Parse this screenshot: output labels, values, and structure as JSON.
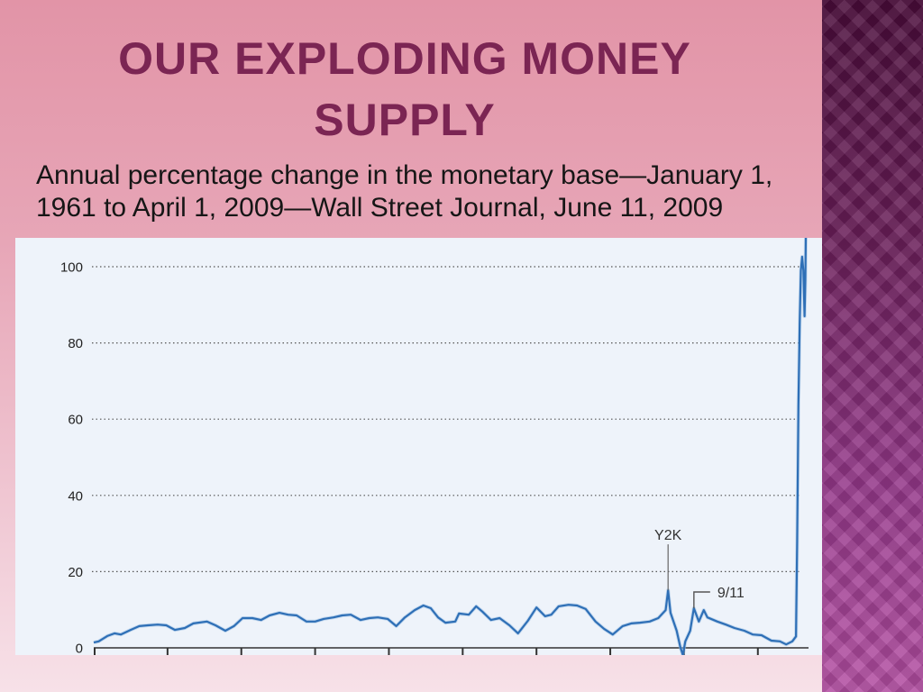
{
  "slide": {
    "title": "OUR EXPLODING MONEY SUPPLY",
    "subtitle": "Annual percentage change in the monetary base—January 1, 1961 to April 1, 2009—Wall Street Journal, June 11, 2009"
  },
  "colors": {
    "title": "#7b2553",
    "series_line": "#2e6fb6",
    "chart_background": "#eef3fa",
    "side_strip_top": "#4a0c3a",
    "side_strip_bottom": "#b34ea2"
  },
  "chart_data": {
    "type": "line",
    "xlim": [
      "1961-01",
      "2009-04"
    ],
    "ylim": [
      0,
      100
    ],
    "y_tick_labels": [
      "0",
      "20",
      "40",
      "60",
      "80",
      "100"
    ],
    "grid": true,
    "series": [
      {
        "x": [
          "1961-01",
          "1961-05",
          "1961-12",
          "1962-06",
          "1962-11",
          "1963-07",
          "1964-02",
          "1964-09",
          "1965-05",
          "1965-12",
          "1966-07",
          "1967-03",
          "1967-10",
          "1968-09",
          "1969-04",
          "1969-12",
          "1970-07",
          "1971-02",
          "1971-10",
          "1972-05",
          "1972-12",
          "1973-08",
          "1974-03",
          "1974-10",
          "1975-06",
          "1976-01",
          "1976-08",
          "1977-04",
          "1977-11",
          "1978-06",
          "1979-02",
          "1979-09",
          "1980-04",
          "1980-12",
          "1981-07",
          "1982-02",
          "1982-10",
          "1983-05",
          "1983-11",
          "1984-05",
          "1984-11",
          "1985-07",
          "1985-10",
          "1986-06",
          "1986-12",
          "1987-05",
          "1987-12",
          "1988-07",
          "1989-03",
          "1989-10",
          "1990-06",
          "1991-01",
          "1991-08",
          "1992-01",
          "1992-07",
          "1993-03",
          "1993-10",
          "1994-05",
          "1995-01",
          "1995-08",
          "1996-03",
          "1996-11",
          "1997-06",
          "1998-01",
          "1998-09",
          "1999-04",
          "1999-10",
          "1999-12",
          "2000-02",
          "2000-07",
          "2000-10",
          "2000-12",
          "2001-02",
          "2001-06",
          "2001-09",
          "2002-01",
          "2002-05",
          "2002-08",
          "2003-04",
          "2003-11",
          "2004-06",
          "2005-02",
          "2005-09",
          "2006-04",
          "2006-12",
          "2007-07",
          "2007-12",
          "2008-05",
          "2008-08",
          "2008-09",
          "2008-10",
          "2008-11",
          "2008-12",
          "2009-01",
          "2009-02",
          "2009-03",
          "2009-03-20",
          "2009-04"
        ],
        "values": [
          1.4,
          1.7,
          3.1,
          3.8,
          3.5,
          4.7,
          5.7,
          5.9,
          6.1,
          5.9,
          4.7,
          5.2,
          6.4,
          6.9,
          5.9,
          4.5,
          5.7,
          7.8,
          7.8,
          7.3,
          8.5,
          9.2,
          8.7,
          8.5,
          6.9,
          6.9,
          7.6,
          8.0,
          8.5,
          8.7,
          7.3,
          7.8,
          8.0,
          7.6,
          5.7,
          8.0,
          9.9,
          11.1,
          10.4,
          8.0,
          6.6,
          6.9,
          9.0,
          8.7,
          10.9,
          9.5,
          7.3,
          7.8,
          5.9,
          3.8,
          7.1,
          10.6,
          8.3,
          8.7,
          10.9,
          11.3,
          11.1,
          10.2,
          6.9,
          5.0,
          3.5,
          5.7,
          6.4,
          6.6,
          6.9,
          7.8,
          9.9,
          15.1,
          9.2,
          4.5,
          0.2,
          -1.9,
          1.7,
          4.5,
          10.4,
          6.9,
          9.9,
          8.0,
          6.9,
          6.1,
          5.2,
          4.5,
          3.5,
          3.3,
          1.9,
          1.7,
          0.9,
          1.7,
          3.0,
          28.0,
          63.6,
          85.0,
          99.0,
          102.6,
          99.0,
          87.0,
          96.7,
          108.0
        ]
      }
    ],
    "annotations": [
      {
        "text": "Y2K",
        "x": "1999-12",
        "y": 15.1,
        "placement": "above"
      },
      {
        "text": "9/11",
        "x": "2001-09",
        "y": 10.4,
        "placement": "upper-right"
      }
    ]
  }
}
